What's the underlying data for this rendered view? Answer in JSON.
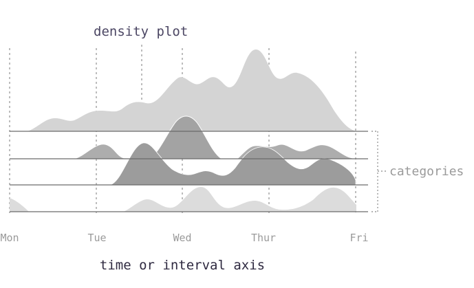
{
  "title": "density plot",
  "x_axis_title": "time or interval axis",
  "categories_label": "categories",
  "days": [
    "Mon",
    "Tue",
    "Wed",
    "Thur",
    "Fri"
  ],
  "colors": {
    "back_ridge": "#d4d4d4",
    "mid_ridge": "#a9a9a9",
    "dark_ridge": "#9c9c9c",
    "front_ridge": "#dcdcdc",
    "baseline": "#6a6a6a",
    "guide": "#8f8f8f",
    "text_title": "#4b4663",
    "text_muted": "#9a9a9a"
  },
  "ridges_back_to_front": [
    "ridge-back-large",
    "ridge-second-row",
    "ridge-peak-wed",
    "ridge-third-row",
    "ridge-front-row"
  ]
}
